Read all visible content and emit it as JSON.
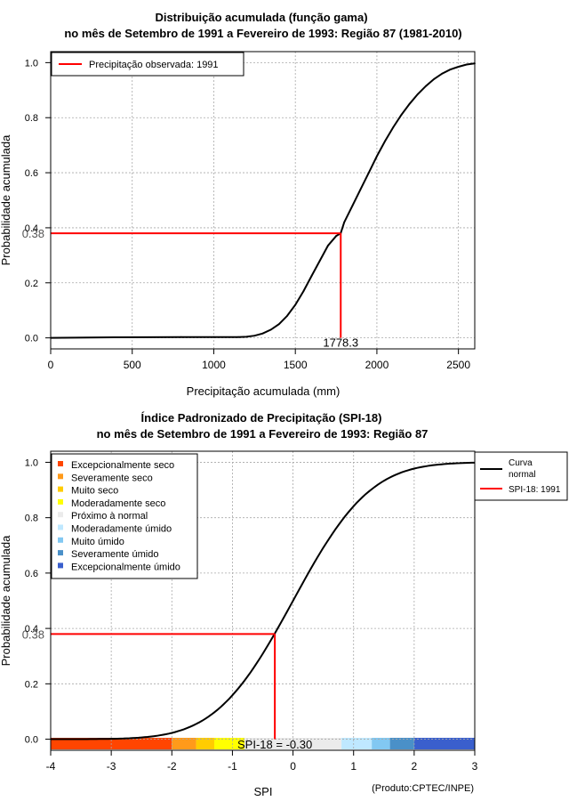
{
  "chart_data": [
    {
      "type": "line",
      "title_line1": "Distribuição acumulada (função gama)",
      "title_line2": "no mês de Setembro de 1991 a Fevereiro de 1993: Região 87 (1981-2010)",
      "xlabel": "Precipitação acumulada (mm)",
      "ylabel": "Probabilidade acumulada",
      "xlim": [
        0,
        2600
      ],
      "ylim": [
        -0.04,
        1.04
      ],
      "xticks": [
        0,
        500,
        1000,
        1500,
        2000,
        2500
      ],
      "yticks": [
        0.0,
        0.2,
        0.4,
        0.6,
        0.8,
        1.0
      ],
      "xtick_labels": [
        "0",
        "500",
        "1000",
        "1500",
        "2000",
        "2500"
      ],
      "ytick_labels": [
        "0.0",
        "0.2",
        "0.4",
        "0.6",
        "0.8",
        "1.0"
      ],
      "grid": true,
      "legend_position": "top-left",
      "legend": [
        "Precipitação observada: 1991"
      ],
      "series": [
        {
          "name": "Distribuição gama",
          "color": "#000000",
          "x": [
            0,
            400,
            800,
            1000,
            1150,
            1200,
            1250,
            1300,
            1350,
            1400,
            1450,
            1500,
            1550,
            1600,
            1650,
            1700,
            1750,
            1778.3,
            1800,
            1850,
            1900,
            1950,
            2000,
            2050,
            2100,
            2150,
            2200,
            2250,
            2300,
            2350,
            2400,
            2450,
            2500,
            2550,
            2600
          ],
          "y": [
            0.0,
            0.002,
            0.003,
            0.003,
            0.003,
            0.004,
            0.008,
            0.016,
            0.03,
            0.05,
            0.08,
            0.12,
            0.17,
            0.225,
            0.28,
            0.335,
            0.37,
            0.38,
            0.42,
            0.48,
            0.54,
            0.6,
            0.66,
            0.715,
            0.765,
            0.81,
            0.85,
            0.885,
            0.915,
            0.94,
            0.96,
            0.975,
            0.985,
            0.993,
            0.997
          ]
        }
      ],
      "marker": {
        "label": "Precipitação observada: 1991",
        "color": "#ff0000",
        "x": 1778.3,
        "y": 0.38,
        "x_label": "1778.3",
        "y_label": "0.38"
      }
    },
    {
      "type": "line",
      "title_line1": "Índice Padronizado de Precipitação (SPI-18)",
      "title_line2": "no mês de Setembro de 1991 a Fevereiro de 1993: Região 87",
      "xlabel": "SPI",
      "ylabel": "Probabilidade acumulada",
      "xlim": [
        -4,
        3
      ],
      "ylim": [
        -0.04,
        1.04
      ],
      "xticks": [
        -4,
        -3,
        -2,
        -1,
        0,
        1,
        2,
        3
      ],
      "yticks": [
        0.0,
        0.2,
        0.4,
        0.6,
        0.8,
        1.0
      ],
      "xtick_labels": [
        "-4",
        "-3",
        "-2",
        "-1",
        "0",
        "1",
        "2",
        "3"
      ],
      "ytick_labels": [
        "0.0",
        "0.2",
        "0.4",
        "0.6",
        "0.8",
        "1.0"
      ],
      "grid": true,
      "legend_position": "top-right",
      "legend": [
        "Curva normal",
        "SPI-18: 1991"
      ],
      "category_legend_position": "top-left",
      "categories": [
        {
          "label": "Excepcionalmente seco",
          "color": "#ff4500",
          "from": -4.0,
          "to": -2.0
        },
        {
          "label": "Severamente seco",
          "color": "#ff9a1a",
          "from": -2.0,
          "to": -1.6
        },
        {
          "label": "Muito seco",
          "color": "#ffcc00",
          "from": -1.6,
          "to": -1.3
        },
        {
          "label": "Moderadamente seco",
          "color": "#ffff00",
          "from": -1.3,
          "to": -0.8
        },
        {
          "label": "Próximo à normal",
          "color": "#ebebeb",
          "from": -0.8,
          "to": 0.8
        },
        {
          "label": "Moderadamente úmido",
          "color": "#bfe8ff",
          "from": 0.8,
          "to": 1.3
        },
        {
          "label": "Muito úmido",
          "color": "#82c8f2",
          "from": 1.3,
          "to": 1.6
        },
        {
          "label": "Severamente úmido",
          "color": "#4a90c8",
          "from": 1.6,
          "to": 2.0
        },
        {
          "label": "Excepcionalmente úmido",
          "color": "#3a5fcd",
          "from": 2.0,
          "to": 3.0
        }
      ],
      "marker": {
        "label": "SPI-18: 1991",
        "color": "#ff0000",
        "x": -0.3,
        "y": 0.38,
        "x_label": "SPI-18 = -0.30",
        "y_label": "0.38"
      },
      "curve_name": "Curva normal",
      "curve_color": "#000000"
    }
  ],
  "footer": {
    "credit": "(Produto:CPTEC/INPE)"
  }
}
